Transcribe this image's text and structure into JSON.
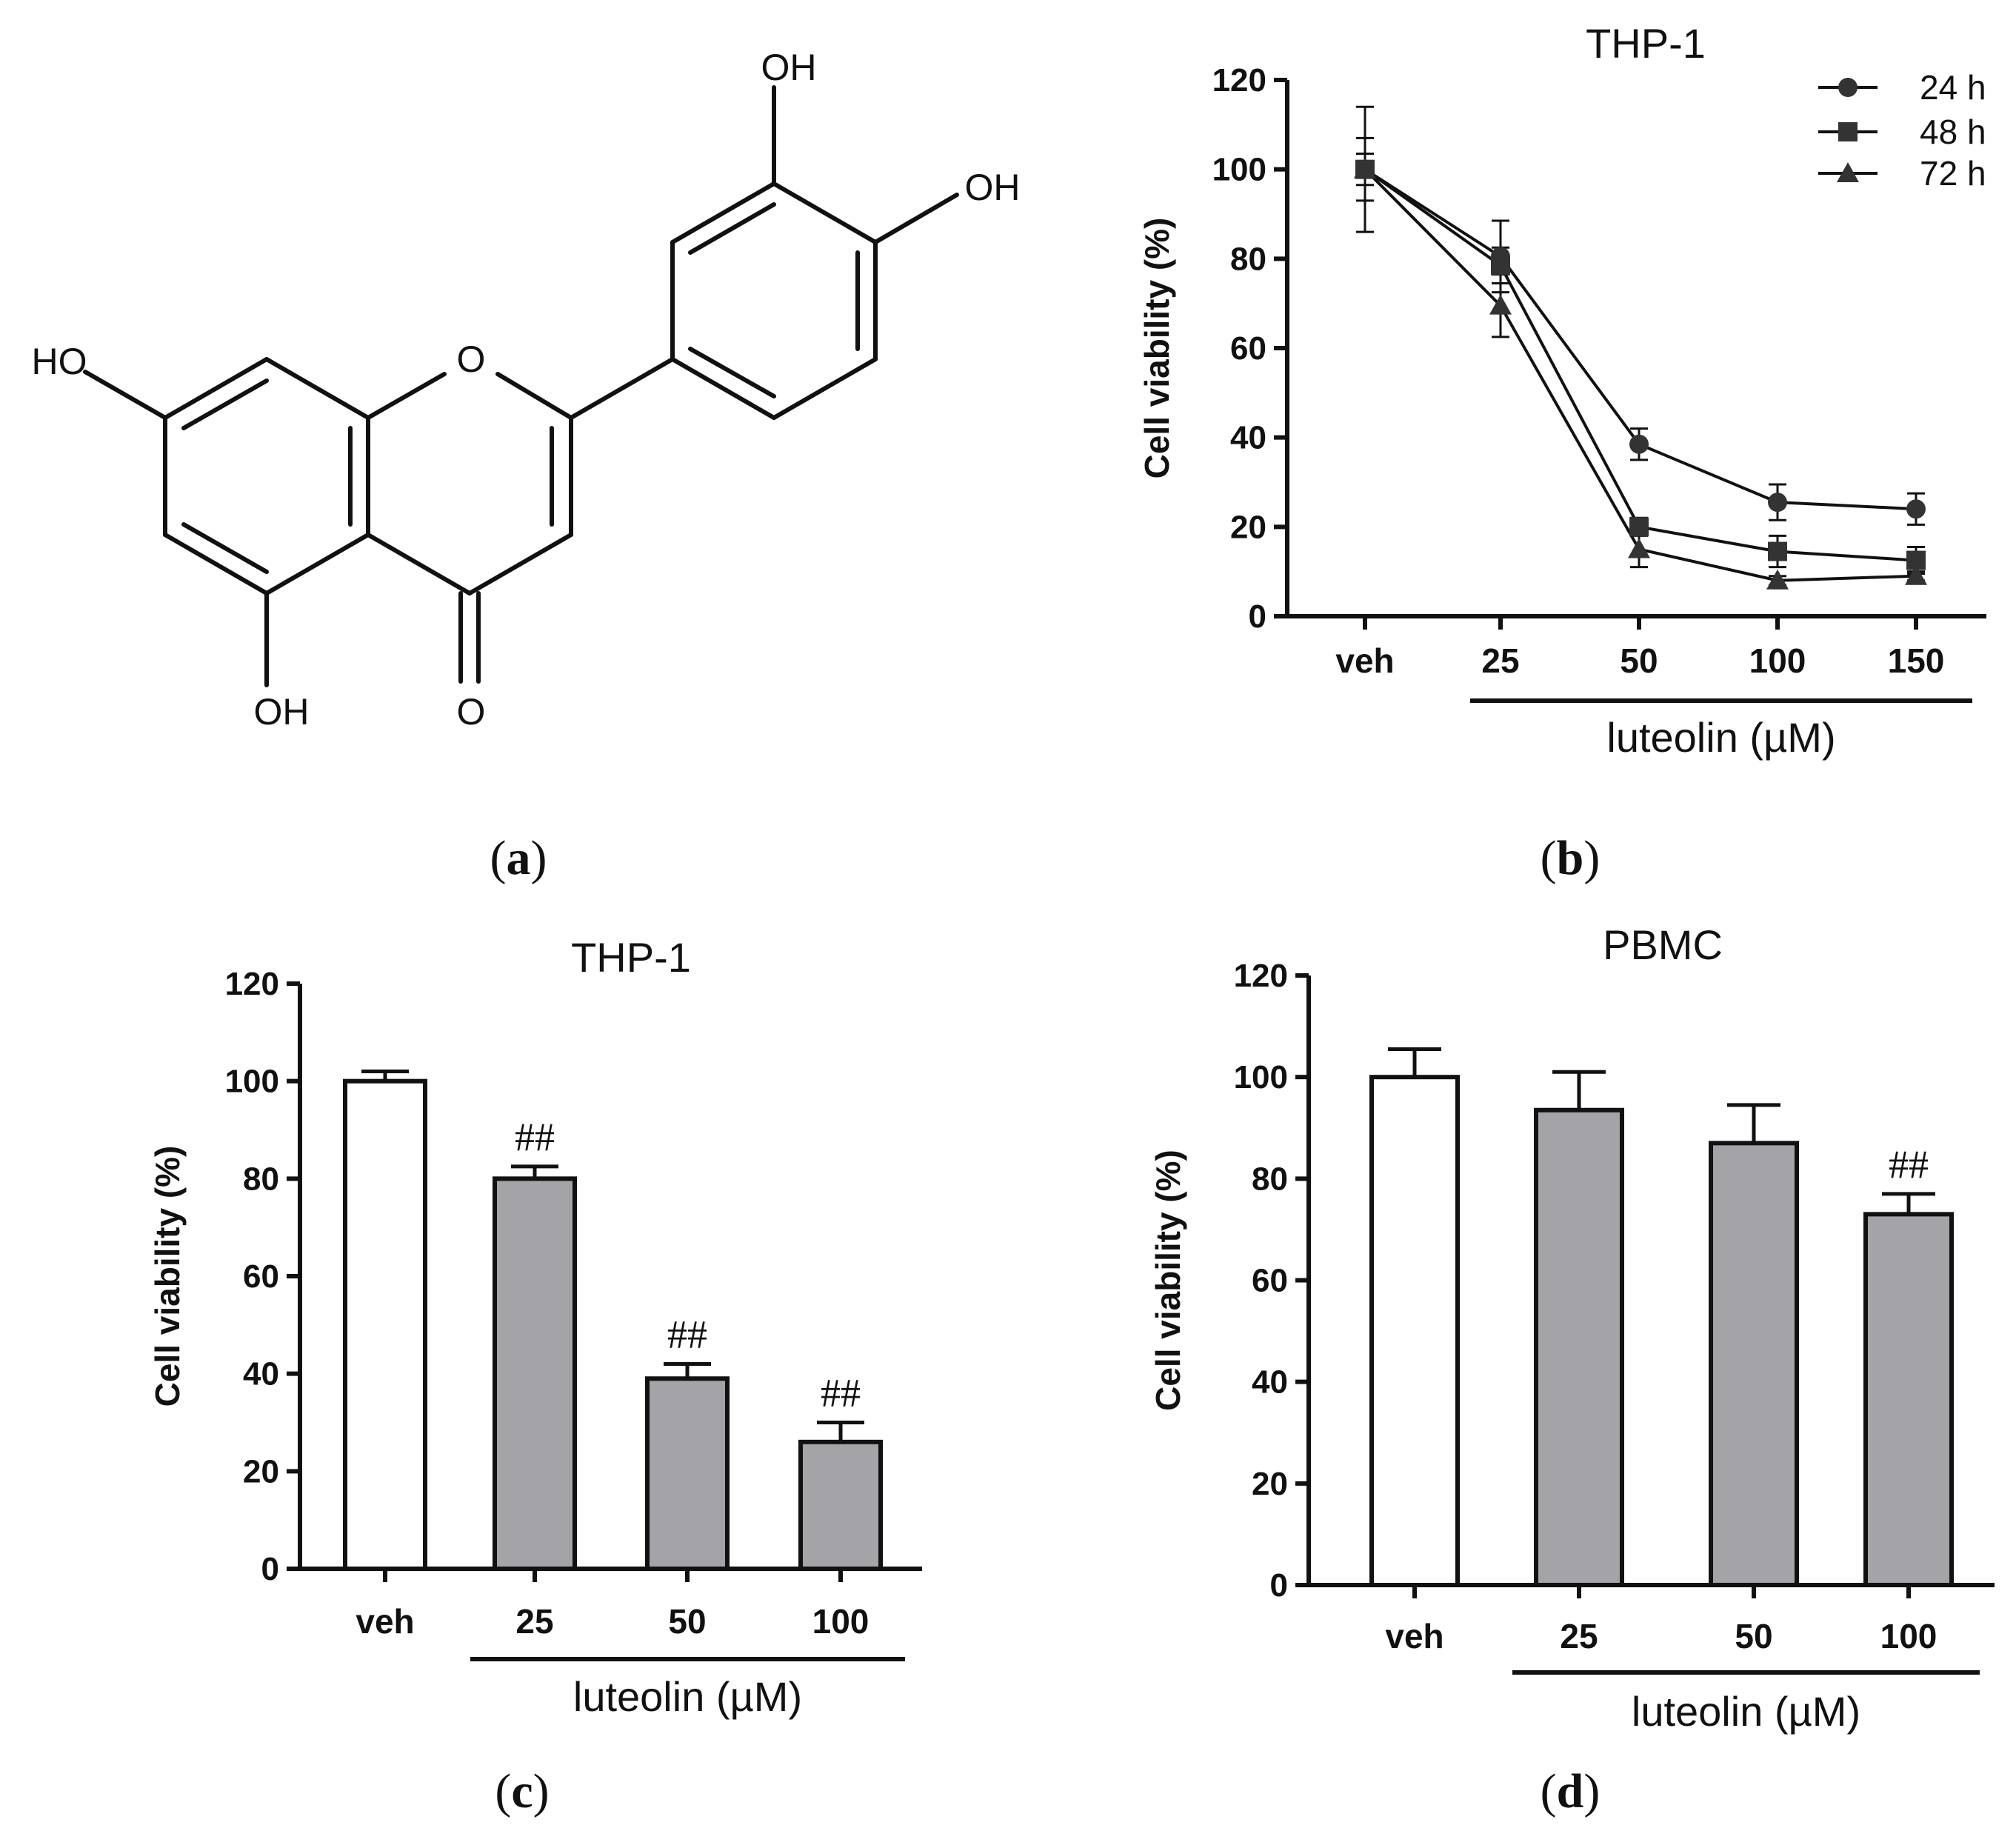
{
  "panels": {
    "a": {
      "label": "a"
    },
    "b": {
      "label": "b"
    },
    "c": {
      "label": "c"
    },
    "d": {
      "label": "d"
    }
  },
  "molecule": {
    "atoms": {
      "oh_top": "OH",
      "oh_right": "OH",
      "ho_left": "HO",
      "oh_bottom": "OH",
      "o_ring": "O",
      "o_carbonyl": "O"
    }
  },
  "chart_data": [
    {
      "panel": "b",
      "type": "line",
      "title": "THP-1",
      "ylabel": "Cell viability (%)",
      "xlabel": "luteolin (µM)",
      "categories": [
        "veh",
        "25",
        "50",
        "100",
        "150"
      ],
      "ylim": [
        0,
        120
      ],
      "yticks": [
        0,
        20,
        40,
        60,
        80,
        100,
        120
      ],
      "legend_position": "top-right",
      "series": [
        {
          "name": "24 h",
          "marker": "circle",
          "values": [
            100,
            80.5,
            38.5,
            25.5,
            24
          ],
          "errors": [
            14,
            8,
            3.5,
            4,
            3.5
          ]
        },
        {
          "name": "48 h",
          "marker": "square",
          "values": [
            100,
            78.5,
            20,
            14.5,
            12.5
          ],
          "errors": [
            7,
            4,
            2,
            3.5,
            3
          ]
        },
        {
          "name": "72 h",
          "marker": "triangle",
          "values": [
            100,
            69.5,
            15,
            8,
            9
          ],
          "errors": [
            3.5,
            7,
            4,
            1,
            1
          ]
        }
      ]
    },
    {
      "panel": "c",
      "type": "bar",
      "title": "THP-1",
      "ylabel": "Cell viability (%)",
      "xlabel": "luteolin (µM)",
      "categories": [
        "veh",
        "25",
        "50",
        "100"
      ],
      "values": [
        100,
        80,
        39,
        26
      ],
      "errors": [
        2,
        2.5,
        3,
        4
      ],
      "annotations": [
        "",
        "##",
        "##",
        "##"
      ],
      "ylim": [
        0,
        120
      ],
      "yticks": [
        0,
        20,
        40,
        60,
        80,
        100,
        120
      ],
      "fills": [
        "#ffffff",
        "#a3a3a8",
        "#a3a3a8",
        "#a3a3a8"
      ]
    },
    {
      "panel": "d",
      "type": "bar",
      "title": "PBMC",
      "ylabel": "Cell viability (%)",
      "xlabel": "luteolin (µM)",
      "categories": [
        "veh",
        "25",
        "50",
        "100"
      ],
      "values": [
        100,
        93.5,
        87,
        73
      ],
      "errors": [
        5.5,
        7.5,
        7.5,
        4
      ],
      "annotations": [
        "",
        "",
        "",
        "##"
      ],
      "ylim": [
        0,
        120
      ],
      "yticks": [
        0,
        20,
        40,
        60,
        80,
        100,
        120
      ],
      "fills": [
        "#ffffff",
        "#a3a3a8",
        "#a3a3a8",
        "#a3a3a8"
      ]
    }
  ]
}
